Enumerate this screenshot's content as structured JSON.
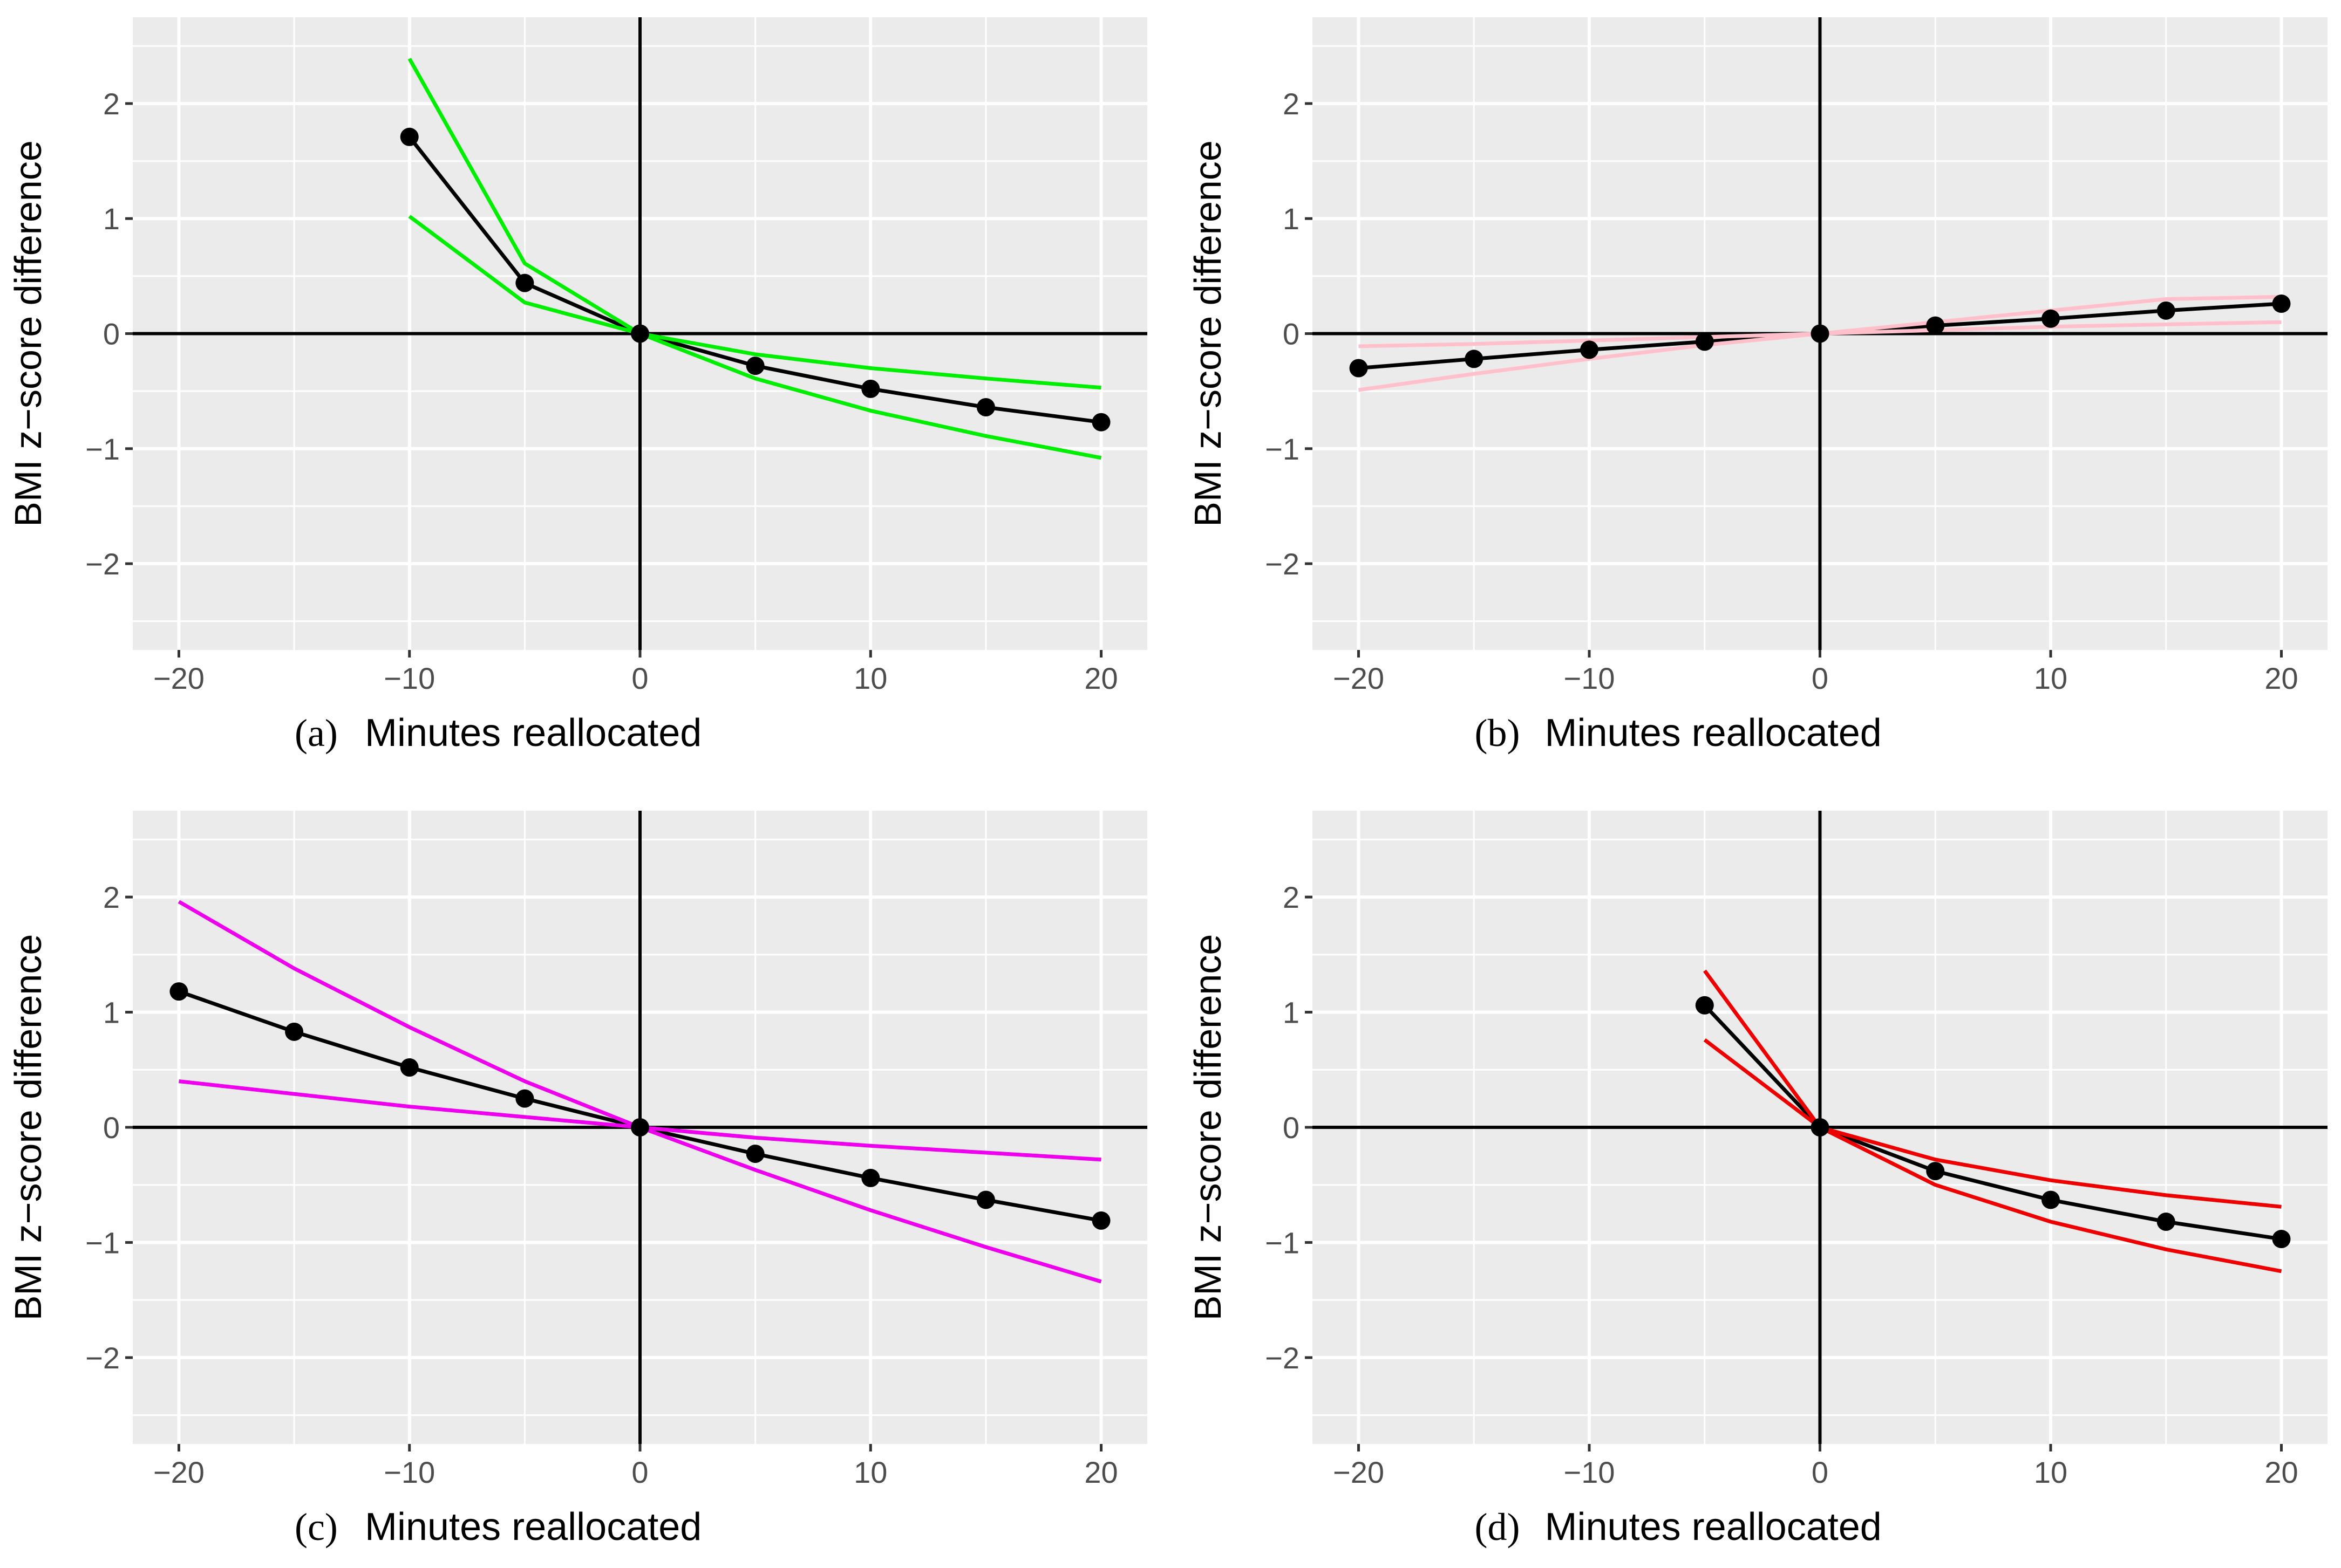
{
  "chart_data": [
    {
      "type": "line",
      "panel_label": "(a)",
      "xlabel": "Minutes reallocated",
      "ylabel": "BMI z−score difference",
      "xlim": [
        -22,
        22
      ],
      "ylim": [
        -2.75,
        2.75
      ],
      "x_ticks": [
        -20,
        -10,
        0,
        10,
        20
      ],
      "x_tick_labels": [
        "−20",
        "−10",
        "0",
        "10",
        "20"
      ],
      "y_ticks": [
        -2,
        -1,
        0,
        1,
        2
      ],
      "y_tick_labels": [
        "−2",
        "−1",
        "0",
        "1",
        "2"
      ],
      "grid": true,
      "band_color": "#00ee00",
      "series": [
        {
          "name": "estimate",
          "color": "#000000",
          "markers": true,
          "x": [
            -10,
            -5,
            0,
            5,
            10,
            15,
            20
          ],
          "values": [
            1.71,
            0.44,
            0.0,
            -0.28,
            -0.48,
            -0.64,
            -0.77
          ]
        },
        {
          "name": "upper",
          "color": "#00ee00",
          "markers": false,
          "x": [
            -10,
            -5,
            0,
            5,
            10,
            15,
            20
          ],
          "values": [
            2.39,
            0.61,
            0.0,
            -0.18,
            -0.3,
            -0.39,
            -0.47
          ]
        },
        {
          "name": "lower",
          "color": "#00ee00",
          "markers": false,
          "x": [
            -10,
            -5,
            0,
            5,
            10,
            15,
            20
          ],
          "values": [
            1.02,
            0.27,
            0.0,
            -0.39,
            -0.67,
            -0.89,
            -1.08
          ]
        }
      ]
    },
    {
      "type": "line",
      "panel_label": "(b)",
      "xlabel": "Minutes reallocated",
      "ylabel": "BMI z−score difference",
      "xlim": [
        -22,
        22
      ],
      "ylim": [
        -2.75,
        2.75
      ],
      "x_ticks": [
        -20,
        -10,
        0,
        10,
        20
      ],
      "x_tick_labels": [
        "−20",
        "−10",
        "0",
        "10",
        "20"
      ],
      "y_ticks": [
        -2,
        -1,
        0,
        1,
        2
      ],
      "y_tick_labels": [
        "−2",
        "−1",
        "0",
        "1",
        "2"
      ],
      "grid": true,
      "band_color": "#ffc0cb",
      "series": [
        {
          "name": "estimate",
          "color": "#000000",
          "markers": true,
          "x": [
            -20,
            -15,
            -10,
            -5,
            0,
            5,
            10,
            15,
            20
          ],
          "values": [
            -0.3,
            -0.22,
            -0.14,
            -0.07,
            0.0,
            0.07,
            0.13,
            0.2,
            0.26
          ]
        },
        {
          "name": "upper",
          "color": "#ffc0cb",
          "markers": false,
          "x": [
            -20,
            -15,
            -10,
            -5,
            0,
            5,
            10,
            15,
            20
          ],
          "values": [
            -0.11,
            -0.09,
            -0.06,
            -0.03,
            0.0,
            0.1,
            0.2,
            0.3,
            0.32
          ]
        },
        {
          "name": "lower",
          "color": "#ffc0cb",
          "markers": false,
          "x": [
            -20,
            -15,
            -10,
            -5,
            0,
            5,
            10,
            15,
            20
          ],
          "values": [
            -0.49,
            -0.35,
            -0.22,
            -0.1,
            0.0,
            0.03,
            0.06,
            0.08,
            0.1
          ]
        }
      ]
    },
    {
      "type": "line",
      "panel_label": "(c)",
      "xlabel": "Minutes reallocated",
      "ylabel": "BMI z−score difference",
      "xlim": [
        -22,
        22
      ],
      "ylim": [
        -2.75,
        2.75
      ],
      "x_ticks": [
        -20,
        -10,
        0,
        10,
        20
      ],
      "x_tick_labels": [
        "−20",
        "−10",
        "0",
        "10",
        "20"
      ],
      "y_ticks": [
        -2,
        -1,
        0,
        1,
        2
      ],
      "y_tick_labels": [
        "−2",
        "−1",
        "0",
        "1",
        "2"
      ],
      "grid": true,
      "band_color": "#ee00ee",
      "series": [
        {
          "name": "estimate",
          "color": "#000000",
          "markers": true,
          "x": [
            -20,
            -15,
            -10,
            -5,
            0,
            5,
            10,
            15,
            20
          ],
          "values": [
            1.18,
            0.83,
            0.52,
            0.25,
            0.0,
            -0.23,
            -0.44,
            -0.63,
            -0.81
          ]
        },
        {
          "name": "upper",
          "color": "#ee00ee",
          "markers": false,
          "x": [
            -20,
            -15,
            -10,
            -5,
            0,
            5,
            10,
            15,
            20
          ],
          "values": [
            1.96,
            1.38,
            0.87,
            0.4,
            0.0,
            -0.09,
            -0.16,
            -0.22,
            -0.28
          ]
        },
        {
          "name": "lower",
          "color": "#ee00ee",
          "markers": false,
          "x": [
            -20,
            -15,
            -10,
            -5,
            0,
            5,
            10,
            15,
            20
          ],
          "values": [
            0.4,
            0.29,
            0.18,
            0.09,
            0.0,
            -0.37,
            -0.72,
            -1.04,
            -1.34
          ]
        }
      ]
    },
    {
      "type": "line",
      "panel_label": "(d)",
      "xlabel": "Minutes reallocated",
      "ylabel": "BMI z−score difference",
      "xlim": [
        -22,
        22
      ],
      "ylim": [
        -2.75,
        2.75
      ],
      "x_ticks": [
        -20,
        -10,
        0,
        10,
        20
      ],
      "x_tick_labels": [
        "−20",
        "−10",
        "0",
        "10",
        "20"
      ],
      "y_ticks": [
        -2,
        -1,
        0,
        1,
        2
      ],
      "y_tick_labels": [
        "−2",
        "−1",
        "0",
        "1",
        "2"
      ],
      "grid": true,
      "band_color": "#ee0000",
      "series": [
        {
          "name": "estimate",
          "color": "#000000",
          "markers": true,
          "x": [
            -5,
            0,
            5,
            10,
            15,
            20
          ],
          "values": [
            1.06,
            0.0,
            -0.38,
            -0.63,
            -0.82,
            -0.97
          ]
        },
        {
          "name": "upper",
          "color": "#ee0000",
          "markers": false,
          "x": [
            -5,
            0,
            5,
            10,
            15,
            20
          ],
          "values": [
            1.36,
            0.0,
            -0.28,
            -0.46,
            -0.59,
            -0.69
          ]
        },
        {
          "name": "lower",
          "color": "#ee0000",
          "markers": false,
          "x": [
            -5,
            0,
            5,
            10,
            15,
            20
          ],
          "values": [
            0.76,
            0.0,
            -0.5,
            -0.82,
            -1.06,
            -1.25
          ]
        }
      ]
    }
  ]
}
